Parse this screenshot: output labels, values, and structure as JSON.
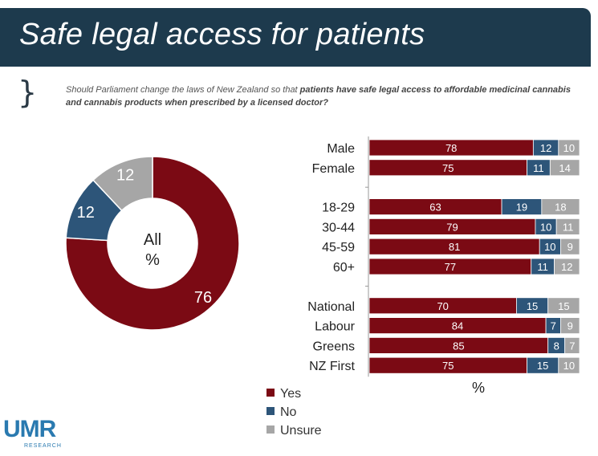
{
  "title": "Safe legal access for patients",
  "question": {
    "prefix": "Should Parliament change the laws of New Zealand so that ",
    "emphasis": "patients have safe legal access to affordable medicinal cannabis and cannabis products when prescribed by a licensed doctor?"
  },
  "legend": [
    {
      "label": "Yes",
      "color": "#7b0a14"
    },
    {
      "label": "No",
      "color": "#2d5579"
    },
    {
      "label": "Unsure",
      "color": "#a6a6a6"
    }
  ],
  "logo": {
    "main": "UMR",
    "sub": "RESEARCH"
  },
  "chart_data": [
    {
      "type": "pie",
      "donut": true,
      "center_label": [
        "All",
        "%"
      ],
      "categories": [
        "Yes",
        "No",
        "Unsure"
      ],
      "values": [
        76,
        12,
        12
      ],
      "colors": [
        "#7b0a14",
        "#2d5579",
        "#a6a6a6"
      ]
    },
    {
      "type": "bar",
      "orientation": "horizontal",
      "stacked": true,
      "xlabel": "%",
      "groups": [
        [
          "Male",
          "Female"
        ],
        [
          "18-29",
          "30-44",
          "45-59",
          "60+"
        ],
        [
          "National",
          "Labour",
          "Greens",
          "NZ First"
        ]
      ],
      "categories": [
        "Male",
        "Female",
        "18-29",
        "30-44",
        "45-59",
        "60+",
        "National",
        "Labour",
        "Greens",
        "NZ First"
      ],
      "series": [
        {
          "name": "Yes",
          "color": "#7b0a14",
          "values": [
            78,
            75,
            63,
            79,
            81,
            77,
            70,
            84,
            85,
            75
          ]
        },
        {
          "name": "No",
          "color": "#2d5579",
          "values": [
            12,
            11,
            19,
            10,
            10,
            11,
            15,
            7,
            8,
            15
          ]
        },
        {
          "name": "Unsure",
          "color": "#a6a6a6",
          "values": [
            10,
            14,
            18,
            11,
            9,
            12,
            15,
            9,
            7,
            10
          ]
        }
      ]
    }
  ]
}
